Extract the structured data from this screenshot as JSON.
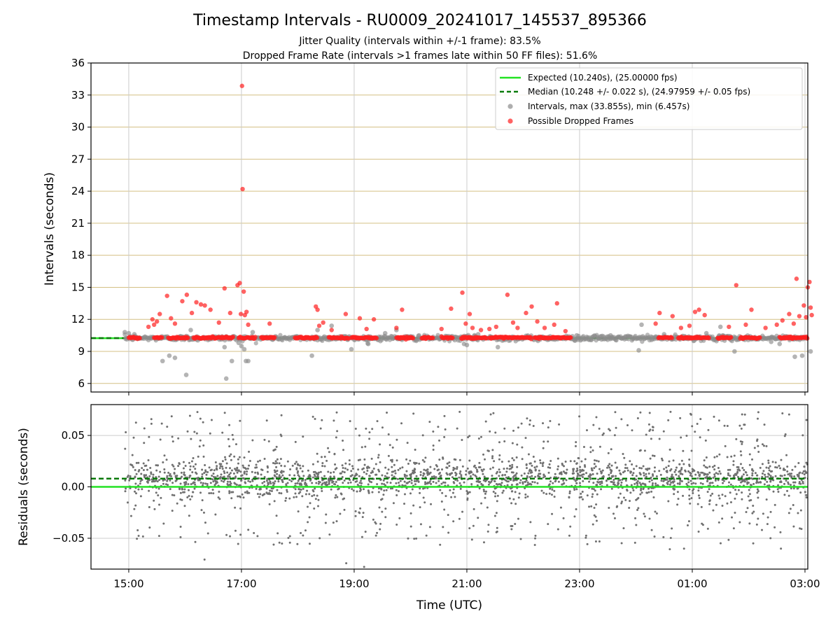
{
  "header": {
    "title": "Timestamp Intervals - RU0009_20241017_145537_895366",
    "subtitle_1": "Jitter Quality (intervals within +/-1 frame): 83.5%",
    "subtitle_2": "Dropped Frame Rate (intervals >1 frames late within 50 FF files): 51.6%"
  },
  "colors": {
    "expected": "#22e222",
    "median": "#0a7a0a",
    "intervals": "#8c8c8c",
    "dropped": "#ff2020",
    "residuals": "#707070",
    "hgrid_top": "#d4c084",
    "grid": "#cccccc"
  },
  "chart_data": [
    {
      "type": "scatter",
      "panel": "intervals",
      "ylabel": "Intervals (seconds)",
      "ylim": [
        5.2,
        36
      ],
      "yticks": [
        6,
        9,
        12,
        15,
        18,
        21,
        24,
        27,
        30,
        33,
        36
      ],
      "xlim_hours": [
        14.33,
        27.05
      ],
      "xticks_hours": [
        15,
        17,
        19,
        21,
        23,
        25,
        27
      ],
      "grid": "on",
      "legend_placement": "top-right",
      "legend": {
        "expected": "Expected (10.240s), (25.00000 fps)",
        "median": "Median (10.248 +/- 0.022 s), (24.97959 +/- 0.05 fps)",
        "intervals": "Intervals, max (33.855s), min (6.457s)",
        "dropped": "Possible Dropped Frames"
      },
      "expected_line": 10.24,
      "median_line": 10.248,
      "max_interval": 33.855,
      "min_interval": 6.457,
      "x_start_hour": 14.93,
      "x_end_hour": 27.05,
      "baseline_red_segments": [
        [
          15.0,
          15.2
        ],
        [
          15.45,
          15.6
        ],
        [
          15.7,
          16.05
        ],
        [
          16.15,
          16.85
        ],
        [
          16.95,
          17.25
        ],
        [
          17.35,
          17.6
        ],
        [
          17.95,
          18.35
        ],
        [
          18.55,
          18.9
        ],
        [
          18.95,
          19.4
        ],
        [
          19.75,
          20.05
        ],
        [
          20.2,
          20.4
        ],
        [
          20.55,
          20.75
        ],
        [
          20.9,
          21.35
        ],
        [
          21.4,
          22.15
        ],
        [
          22.2,
          22.85
        ],
        [
          24.4,
          24.65
        ],
        [
          24.75,
          25.3
        ],
        [
          25.45,
          25.7
        ],
        [
          25.85,
          26.2
        ],
        [
          26.55,
          27.05
        ]
      ],
      "dropped_outliers": [
        [
          15.35,
          11.3
        ],
        [
          15.42,
          12.0
        ],
        [
          15.45,
          11.5
        ],
        [
          15.5,
          11.8
        ],
        [
          15.55,
          12.5
        ],
        [
          15.68,
          14.2
        ],
        [
          15.75,
          12.1
        ],
        [
          15.82,
          11.6
        ],
        [
          15.95,
          13.7
        ],
        [
          16.03,
          14.3
        ],
        [
          16.12,
          12.6
        ],
        [
          16.2,
          13.6
        ],
        [
          16.28,
          13.4
        ],
        [
          16.35,
          13.3
        ],
        [
          16.45,
          12.9
        ],
        [
          16.6,
          11.7
        ],
        [
          16.7,
          14.9
        ],
        [
          16.8,
          12.6
        ],
        [
          16.93,
          15.2
        ],
        [
          16.97,
          15.4
        ],
        [
          16.99,
          12.5
        ],
        [
          17.01,
          33.855
        ],
        [
          17.02,
          24.2
        ],
        [
          17.04,
          14.6
        ],
        [
          17.06,
          12.4
        ],
        [
          17.09,
          12.7
        ],
        [
          17.12,
          11.5
        ],
        [
          17.5,
          11.6
        ],
        [
          18.32,
          13.2
        ],
        [
          18.35,
          12.9
        ],
        [
          18.38,
          11.4
        ],
        [
          18.45,
          11.7
        ],
        [
          18.6,
          11.0
        ],
        [
          18.85,
          12.5
        ],
        [
          19.1,
          12.1
        ],
        [
          19.22,
          11.1
        ],
        [
          19.35,
          12.0
        ],
        [
          19.75,
          11.2
        ],
        [
          19.85,
          12.9
        ],
        [
          20.55,
          11.1
        ],
        [
          20.72,
          13.0
        ],
        [
          20.92,
          14.5
        ],
        [
          20.98,
          11.6
        ],
        [
          21.05,
          12.5
        ],
        [
          21.1,
          11.2
        ],
        [
          21.25,
          11.0
        ],
        [
          21.4,
          11.1
        ],
        [
          21.52,
          11.3
        ],
        [
          21.72,
          14.3
        ],
        [
          21.82,
          11.7
        ],
        [
          21.9,
          11.2
        ],
        [
          22.05,
          12.6
        ],
        [
          22.15,
          13.2
        ],
        [
          22.25,
          11.8
        ],
        [
          22.38,
          11.2
        ],
        [
          22.55,
          11.5
        ],
        [
          22.6,
          13.5
        ],
        [
          22.75,
          10.9
        ],
        [
          24.35,
          11.6
        ],
        [
          24.42,
          12.6
        ],
        [
          24.65,
          12.3
        ],
        [
          24.8,
          11.2
        ],
        [
          24.95,
          11.4
        ],
        [
          25.05,
          12.7
        ],
        [
          25.12,
          12.9
        ],
        [
          25.22,
          12.4
        ],
        [
          25.65,
          11.3
        ],
        [
          25.78,
          15.2
        ],
        [
          25.95,
          11.5
        ],
        [
          26.05,
          12.9
        ],
        [
          26.3,
          11.2
        ],
        [
          26.5,
          11.5
        ],
        [
          26.6,
          11.9
        ],
        [
          26.72,
          12.5
        ],
        [
          26.8,
          11.6
        ],
        [
          26.9,
          12.3
        ],
        [
          26.98,
          13.3
        ],
        [
          27.02,
          12.2
        ],
        [
          26.85,
          15.8
        ],
        [
          27.05,
          15.0
        ],
        [
          27.08,
          15.5
        ],
        [
          27.1,
          13.1
        ],
        [
          27.12,
          12.4
        ]
      ],
      "interval_outliers": [
        [
          14.93,
          10.8
        ],
        [
          15.0,
          10.7
        ],
        [
          15.1,
          10.6
        ],
        [
          15.6,
          8.1
        ],
        [
          15.72,
          8.6
        ],
        [
          15.82,
          8.4
        ],
        [
          16.02,
          6.8
        ],
        [
          16.1,
          11.0
        ],
        [
          16.7,
          9.4
        ],
        [
          16.73,
          6.457
        ],
        [
          16.83,
          8.1
        ],
        [
          16.95,
          9.8
        ],
        [
          17.0,
          9.5
        ],
        [
          17.05,
          9.2
        ],
        [
          17.08,
          8.1
        ],
        [
          17.12,
          8.1
        ],
        [
          17.2,
          10.8
        ],
        [
          18.25,
          8.6
        ],
        [
          18.35,
          11.0
        ],
        [
          18.6,
          11.4
        ],
        [
          18.95,
          9.2
        ],
        [
          19.25,
          9.7
        ],
        [
          19.55,
          10.7
        ],
        [
          19.75,
          11.0
        ],
        [
          20.15,
          10.5
        ],
        [
          20.95,
          9.7
        ],
        [
          21.0,
          9.6
        ],
        [
          21.2,
          10.6
        ],
        [
          21.55,
          9.4
        ],
        [
          22.95,
          10.5
        ],
        [
          23.55,
          10.5
        ],
        [
          24.05,
          9.1
        ],
        [
          24.1,
          11.5
        ],
        [
          24.5,
          10.6
        ],
        [
          25.25,
          10.7
        ],
        [
          25.5,
          11.3
        ],
        [
          25.75,
          9.0
        ],
        [
          26.4,
          9.9
        ],
        [
          26.55,
          9.7
        ],
        [
          26.82,
          8.5
        ],
        [
          26.95,
          8.6
        ],
        [
          27.1,
          9.0
        ]
      ]
    },
    {
      "type": "scatter",
      "panel": "residuals",
      "ylabel": "Residuals (seconds)",
      "xlabel": "Time (UTC)",
      "ylim": [
        -0.08,
        0.08
      ],
      "yticks": [
        -0.05,
        0.0,
        0.05
      ],
      "ytick_labels": [
        "−0.05",
        "0.00",
        "0.05"
      ],
      "xlim_hours": [
        14.33,
        27.05
      ],
      "xticks_hours": [
        15,
        17,
        19,
        21,
        23,
        25,
        27
      ],
      "xtick_labels": [
        "15:00",
        "17:00",
        "19:00",
        "21:00",
        "23:00",
        "01:00",
        "03:00"
      ],
      "grid": "on",
      "expected_line": 0.0,
      "median_line": 0.008,
      "x_start_hour": 14.93,
      "x_end_hour": 27.05,
      "point_count": 2400,
      "core_center": 0.008,
      "core_sd": 0.009,
      "wide_spread": 0.065
    }
  ]
}
